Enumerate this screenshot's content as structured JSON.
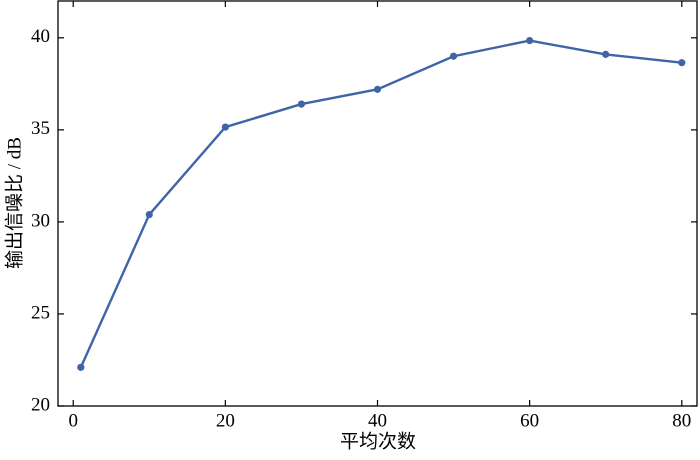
{
  "chart_data": {
    "type": "line",
    "x_label": "平均次数",
    "y_label": "输出信噪比 / dB",
    "x": [
      1,
      10,
      20,
      30,
      40,
      50,
      60,
      70,
      80
    ],
    "series": [
      {
        "name": null,
        "color": "#3f65a8",
        "values": [
          22.1,
          30.4,
          35.15,
          36.4,
          37.2,
          39.0,
          39.85,
          39.1,
          38.65
        ]
      }
    ],
    "xlim": [
      -2,
      82
    ],
    "xticks": [
      0,
      20,
      40,
      60,
      80
    ],
    "ylim": [
      20,
      42
    ],
    "yticks": [
      20,
      25,
      30,
      35,
      40
    ],
    "grid": false
  }
}
